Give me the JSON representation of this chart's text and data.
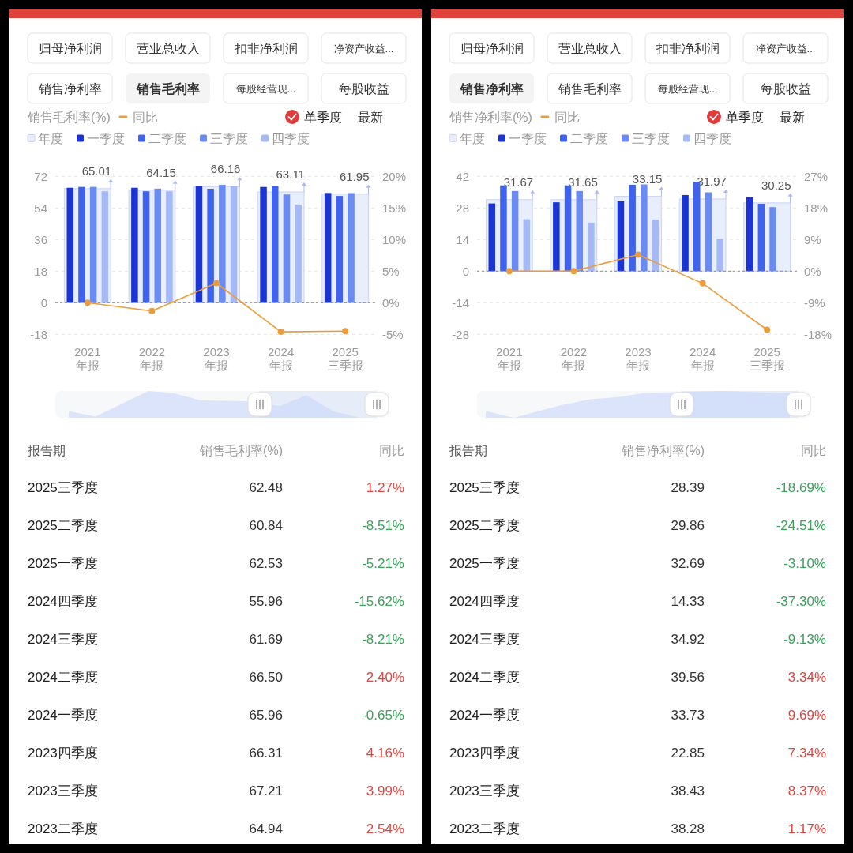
{
  "chart_data": [
    {
      "type": "other",
      "categories": [
        "归母净利润",
        "营业总收入",
        "扣非净利润",
        "净资产收益...",
        "销售净利率",
        "销售毛利率",
        "每股经营现...",
        "每股收益"
      ],
      "colors": [
        null,
        null,
        null,
        null,
        null,
        "#f4f4f5",
        null,
        null
      ]
    },
    {
      "type": "bar",
      "ylabel": "销售毛利率(%)",
      "categories": [
        "2021\n年报",
        "2022\n年报",
        "2023\n年报",
        "2024\n年报",
        "2025\n三季报"
      ],
      "series": [
        {
          "name": "年度",
          "type": "bar",
          "color": "#e9eefc",
          "values": [
            65.01,
            64.15,
            66.16,
            63.11,
            61.95
          ],
          "value_labels": [
            "65.01",
            "64.15",
            "66.16",
            "63.11",
            "61.95"
          ]
        },
        {
          "name": "一季度",
          "type": "bar",
          "color": "#1a35d3",
          "values": [
            65.5,
            65.5,
            66.5,
            65.96,
            62.53
          ]
        },
        {
          "name": "二季度",
          "type": "bar",
          "color": "#3f63ee",
          "values": [
            66,
            63.5,
            64.94,
            66.5,
            60.84
          ]
        },
        {
          "name": "三季度",
          "type": "bar",
          "color": "#6a8bf1",
          "values": [
            66,
            65,
            67.21,
            61.69,
            62.48
          ]
        },
        {
          "name": "四季度",
          "type": "bar",
          "color": "#a5b9f6",
          "values": [
            63.5,
            63.5,
            66.31,
            55.96,
            null
          ]
        },
        {
          "name": "同比",
          "type": "line",
          "axis": "y2",
          "color": "#eb9d3c",
          "values": [
            0,
            -1.3,
            3.1,
            -4.6,
            -4.5
          ]
        }
      ],
      "ylim": [
        -18,
        72
      ],
      "yticks": [
        -18,
        0,
        18,
        36,
        54,
        72
      ],
      "y2lim": [
        -5,
        20
      ],
      "y2ticks": [
        {
          "value": -5,
          "label": "-5%"
        },
        {
          "value": 0,
          "label": "0%"
        },
        {
          "value": 5,
          "label": "5%"
        },
        {
          "value": 10,
          "label": "10%"
        },
        {
          "value": 15,
          "label": "15%"
        },
        {
          "value": 20,
          "label": "20%"
        }
      ],
      "ref_lines": [
        {
          "axis": "y",
          "value": 0,
          "color": "#8c8c8c",
          "line_style": "dashed"
        }
      ],
      "grid": "y",
      "legend": "top left",
      "marker": "circle",
      "annotations": [
        "单季度",
        "最新"
      ]
    },
    {
      "type": "other",
      "xlabel": "报告期",
      "categories": [
        "2025三季度",
        "2025二季度",
        "2025一季度",
        "2024四季度",
        "2024三季度",
        "2024二季度",
        "2024一季度",
        "2023四季度",
        "2023三季度",
        "2023二季度"
      ],
      "series": [
        {
          "name": "销售毛利率(%)",
          "values": [
            62.48,
            60.84,
            62.53,
            55.96,
            61.69,
            66.5,
            65.96,
            66.31,
            67.21,
            64.94
          ],
          "value_labels": [
            "62.48",
            "60.84",
            "62.53",
            "55.96",
            "61.69",
            "66.50",
            "65.96",
            "66.31",
            "67.21",
            "64.94"
          ]
        },
        {
          "name": "同比",
          "values": [
            1.27,
            -8.51,
            -5.21,
            -15.62,
            -8.21,
            2.4,
            -0.65,
            4.16,
            3.99,
            2.54
          ],
          "value_labels": [
            "1.27%",
            "-8.51%",
            "-5.21%",
            "-15.62%",
            "-8.21%",
            "2.40%",
            "-0.65%",
            "4.16%",
            "3.99%",
            "2.54%"
          ],
          "colors": [
            "#e0453f",
            "#3aa35a",
            "#3aa35a",
            "#3aa35a",
            "#3aa35a",
            "#e0453f",
            "#3aa35a",
            "#e0453f",
            "#e0453f",
            "#e0453f"
          ]
        }
      ]
    },
    {
      "type": "other",
      "categories": [
        "归母净利润",
        "营业总收入",
        "扣非净利润",
        "净资产收益...",
        "销售净利率",
        "销售毛利率",
        "每股经营现...",
        "每股收益"
      ],
      "colors": [
        null,
        null,
        null,
        null,
        "#f4f4f5",
        null,
        null,
        null
      ]
    },
    {
      "type": "bar",
      "ylabel": "销售净利率(%)",
      "categories": [
        "2021\n年报",
        "2022\n年报",
        "2023\n年报",
        "2024\n年报",
        "2025\n三季报"
      ],
      "series": [
        {
          "name": "年度",
          "type": "bar",
          "color": "#e9eefc",
          "values": [
            31.67,
            31.65,
            33.15,
            31.97,
            30.25
          ],
          "value_labels": [
            "31.67",
            "31.65",
            "33.15",
            "31.97",
            "30.25"
          ]
        },
        {
          "name": "一季度",
          "type": "bar",
          "color": "#1a35d3",
          "values": [
            30,
            30.5,
            31,
            33.73,
            32.69
          ]
        },
        {
          "name": "二季度",
          "type": "bar",
          "color": "#3f63ee",
          "values": [
            38,
            38,
            38.28,
            39.56,
            29.86
          ]
        },
        {
          "name": "三季度",
          "type": "bar",
          "color": "#6a8bf1",
          "values": [
            35.5,
            35.5,
            38.43,
            34.92,
            28.39
          ]
        },
        {
          "name": "四季度",
          "type": "bar",
          "color": "#a5b9f6",
          "values": [
            23,
            21.5,
            22.85,
            14.33,
            null
          ]
        },
        {
          "name": "同比",
          "type": "line",
          "axis": "y2",
          "color": "#eb9d3c",
          "values": [
            0,
            0,
            4.7,
            -3.5,
            -16.7
          ]
        }
      ],
      "ylim": [
        -28,
        42
      ],
      "yticks": [
        -28,
        -14,
        0,
        14,
        28,
        42
      ],
      "y2lim": [
        -18,
        27
      ],
      "y2ticks": [
        {
          "value": -18,
          "label": "-18%"
        },
        {
          "value": -9,
          "label": "-9%"
        },
        {
          "value": 0,
          "label": "0%"
        },
        {
          "value": 9,
          "label": "9%"
        },
        {
          "value": 18,
          "label": "18%"
        },
        {
          "value": 27,
          "label": "27%"
        }
      ],
      "ref_lines": [
        {
          "axis": "y",
          "value": 0,
          "color": "#8c8c8c",
          "line_style": "dashed"
        }
      ],
      "grid": "y",
      "legend": "top left",
      "marker": "circle",
      "annotations": [
        "单季度",
        "最新"
      ]
    },
    {
      "type": "other",
      "xlabel": "报告期",
      "categories": [
        "2025三季度",
        "2025二季度",
        "2025一季度",
        "2024四季度",
        "2024三季度",
        "2024二季度",
        "2024一季度",
        "2023四季度",
        "2023三季度",
        "2023二季度"
      ],
      "series": [
        {
          "name": "销售净利率(%)",
          "values": [
            28.39,
            29.86,
            32.69,
            14.33,
            34.92,
            39.56,
            33.73,
            22.85,
            38.43,
            38.28
          ],
          "value_labels": [
            "28.39",
            "29.86",
            "32.69",
            "14.33",
            "34.92",
            "39.56",
            "33.73",
            "22.85",
            "38.43",
            "38.28"
          ]
        },
        {
          "name": "同比",
          "values": [
            -18.69,
            -24.51,
            -3.1,
            -37.3,
            -9.13,
            3.34,
            9.69,
            7.34,
            8.37,
            1.17
          ],
          "value_labels": [
            "-18.69%",
            "-24.51%",
            "-3.10%",
            "-37.30%",
            "-9.13%",
            "3.34%",
            "9.69%",
            "7.34%",
            "8.37%",
            "1.17%"
          ],
          "colors": [
            "#3aa35a",
            "#3aa35a",
            "#3aa35a",
            "#3aa35a",
            "#3aa35a",
            "#e0453f",
            "#e0453f",
            "#e0453f",
            "#e0453f",
            "#e0453f"
          ]
        }
      ]
    }
  ]
}
